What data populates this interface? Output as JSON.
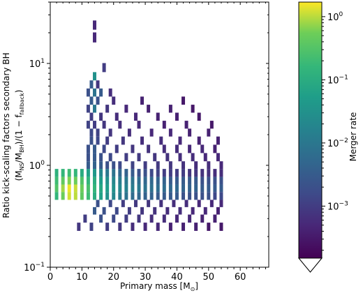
{
  "chart_data": {
    "type": "heatmap",
    "xlabel": "Primary mass [M",
    "xlabel_sub": "⊙",
    "xlabel_close": "]",
    "ylabel_line1": "Ratio kick-scaling factors secondary BH",
    "ylabel_line2": {
      "p1": "(M",
      "s1": "NS",
      "p2": "/M",
      "s2": "BH",
      "p3": ")/(1 − f",
      "s3": "fallback",
      "p4": ")"
    },
    "xlim": [
      0,
      69
    ],
    "ylim": [
      0.1,
      40
    ],
    "yscale": "log",
    "x_ticks": [
      0,
      10,
      20,
      30,
      40,
      50,
      60
    ],
    "x_tick_labels": [
      "0",
      "10",
      "20",
      "30",
      "40",
      "50",
      "60"
    ],
    "y_ticks": [
      0.1,
      1,
      10
    ],
    "y_tick_labels": [
      {
        "base": "10",
        "exp": "−1"
      },
      {
        "base": "10",
        "exp": "0"
      },
      {
        "base": "10",
        "exp": "1"
      }
    ],
    "colorbar": {
      "label": "Merger rate",
      "scale": "log",
      "range": [
        0.00015,
        1.7
      ],
      "extend": "min",
      "ticks": [
        0.001,
        0.01,
        0.1,
        1
      ],
      "tick_labels": [
        {
          "base": "10",
          "exp": "−3"
        },
        {
          "base": "10",
          "exp": "−2"
        },
        {
          "base": "10",
          "exp": "−1"
        },
        {
          "base": "10",
          "exp": "0"
        }
      ],
      "colormap": "viridis"
    },
    "bin_width_x": 1.1,
    "cells": [
      {
        "x": 2,
        "y": 0.5,
        "v": 0.15
      },
      {
        "x": 2,
        "y": 0.6,
        "v": 0.3
      },
      {
        "x": 2,
        "y": 0.7,
        "v": 0.2
      },
      {
        "x": 2,
        "y": 0.85,
        "v": 0.12
      },
      {
        "x": 4,
        "y": 0.5,
        "v": 0.5
      },
      {
        "x": 4,
        "y": 0.6,
        "v": 0.8
      },
      {
        "x": 4,
        "y": 0.7,
        "v": 0.4
      },
      {
        "x": 4,
        "y": 0.85,
        "v": 0.15
      },
      {
        "x": 6,
        "y": 0.5,
        "v": 1.2
      },
      {
        "x": 6,
        "y": 0.6,
        "v": 1.5
      },
      {
        "x": 6,
        "y": 0.7,
        "v": 0.6
      },
      {
        "x": 6,
        "y": 0.85,
        "v": 0.2
      },
      {
        "x": 8,
        "y": 0.5,
        "v": 1.0
      },
      {
        "x": 8,
        "y": 0.6,
        "v": 1.1
      },
      {
        "x": 8,
        "y": 0.7,
        "v": 0.5
      },
      {
        "x": 8,
        "y": 0.85,
        "v": 0.15
      },
      {
        "x": 10,
        "y": 0.5,
        "v": 0.4
      },
      {
        "x": 10,
        "y": 0.6,
        "v": 0.5
      },
      {
        "x": 10,
        "y": 0.7,
        "v": 0.3
      },
      {
        "x": 10,
        "y": 0.85,
        "v": 0.1
      },
      {
        "x": 12,
        "y": 0.5,
        "v": 0.2
      },
      {
        "x": 12,
        "y": 0.6,
        "v": 0.25
      },
      {
        "x": 12,
        "y": 0.7,
        "v": 0.15
      },
      {
        "x": 12,
        "y": 0.85,
        "v": 0.06
      },
      {
        "x": 14,
        "y": 0.5,
        "v": 0.1
      },
      {
        "x": 14,
        "y": 0.6,
        "v": 0.15
      },
      {
        "x": 14,
        "y": 0.7,
        "v": 0.1
      },
      {
        "x": 14,
        "y": 0.85,
        "v": 0.04
      },
      {
        "x": 16,
        "y": 0.5,
        "v": 0.06
      },
      {
        "x": 16,
        "y": 0.6,
        "v": 0.08
      },
      {
        "x": 16,
        "y": 0.7,
        "v": 0.05
      },
      {
        "x": 16,
        "y": 0.85,
        "v": 0.02
      },
      {
        "x": 18,
        "y": 0.5,
        "v": 0.03
      },
      {
        "x": 18,
        "y": 0.6,
        "v": 0.05
      },
      {
        "x": 18,
        "y": 0.7,
        "v": 0.03
      },
      {
        "x": 18,
        "y": 0.85,
        "v": 0.01
      },
      {
        "x": 20,
        "y": 0.5,
        "v": 0.02
      },
      {
        "x": 20,
        "y": 0.6,
        "v": 0.03
      },
      {
        "x": 20,
        "y": 0.7,
        "v": 0.02
      },
      {
        "x": 20,
        "y": 0.85,
        "v": 0.008
      },
      {
        "x": 22,
        "y": 0.5,
        "v": 0.012
      },
      {
        "x": 22,
        "y": 0.6,
        "v": 0.02
      },
      {
        "x": 22,
        "y": 0.7,
        "v": 0.012
      },
      {
        "x": 22,
        "y": 0.85,
        "v": 0.005
      },
      {
        "x": 24,
        "y": 0.5,
        "v": 0.008
      },
      {
        "x": 24,
        "y": 0.6,
        "v": 0.015
      },
      {
        "x": 24,
        "y": 0.7,
        "v": 0.01
      },
      {
        "x": 24,
        "y": 0.85,
        "v": 0.004
      },
      {
        "x": 26,
        "y": 0.5,
        "v": 0.006
      },
      {
        "x": 26,
        "y": 0.6,
        "v": 0.012
      },
      {
        "x": 26,
        "y": 0.7,
        "v": 0.008
      },
      {
        "x": 26,
        "y": 0.85,
        "v": 0.003
      },
      {
        "x": 28,
        "y": 0.5,
        "v": 0.005
      },
      {
        "x": 28,
        "y": 0.6,
        "v": 0.01
      },
      {
        "x": 28,
        "y": 0.7,
        "v": 0.006
      },
      {
        "x": 28,
        "y": 0.85,
        "v": 0.002
      },
      {
        "x": 30,
        "y": 0.5,
        "v": 0.004
      },
      {
        "x": 30,
        "y": 0.6,
        "v": 0.008
      },
      {
        "x": 30,
        "y": 0.7,
        "v": 0.005
      },
      {
        "x": 30,
        "y": 0.85,
        "v": 0.002
      },
      {
        "x": 32,
        "y": 0.5,
        "v": 0.004
      },
      {
        "x": 32,
        "y": 0.6,
        "v": 0.007
      },
      {
        "x": 32,
        "y": 0.7,
        "v": 0.005
      },
      {
        "x": 32,
        "y": 0.85,
        "v": 0.0015
      },
      {
        "x": 34,
        "y": 0.5,
        "v": 0.003
      },
      {
        "x": 34,
        "y": 0.6,
        "v": 0.006
      },
      {
        "x": 34,
        "y": 0.7,
        "v": 0.004
      },
      {
        "x": 34,
        "y": 0.85,
        "v": 0.0012
      },
      {
        "x": 36,
        "y": 0.5,
        "v": 0.003
      },
      {
        "x": 36,
        "y": 0.6,
        "v": 0.006
      },
      {
        "x": 36,
        "y": 0.7,
        "v": 0.004
      },
      {
        "x": 36,
        "y": 0.85,
        "v": 0.001
      },
      {
        "x": 38,
        "y": 0.5,
        "v": 0.003
      },
      {
        "x": 38,
        "y": 0.6,
        "v": 0.005
      },
      {
        "x": 38,
        "y": 0.7,
        "v": 0.003
      },
      {
        "x": 38,
        "y": 0.85,
        "v": 0.001
      },
      {
        "x": 40,
        "y": 0.5,
        "v": 0.003
      },
      {
        "x": 40,
        "y": 0.6,
        "v": 0.005
      },
      {
        "x": 40,
        "y": 0.7,
        "v": 0.003
      },
      {
        "x": 40,
        "y": 0.85,
        "v": 0.001
      },
      {
        "x": 42,
        "y": 0.5,
        "v": 0.002
      },
      {
        "x": 42,
        "y": 0.6,
        "v": 0.004
      },
      {
        "x": 42,
        "y": 0.7,
        "v": 0.003
      },
      {
        "x": 42,
        "y": 0.85,
        "v": 0.001
      },
      {
        "x": 44,
        "y": 0.5,
        "v": 0.002
      },
      {
        "x": 44,
        "y": 0.6,
        "v": 0.004
      },
      {
        "x": 44,
        "y": 0.7,
        "v": 0.003
      },
      {
        "x": 44,
        "y": 0.85,
        "v": 0.0008
      },
      {
        "x": 46,
        "y": 0.5,
        "v": 0.002
      },
      {
        "x": 46,
        "y": 0.6,
        "v": 0.004
      },
      {
        "x": 46,
        "y": 0.7,
        "v": 0.003
      },
      {
        "x": 46,
        "y": 0.85,
        "v": 0.0008
      },
      {
        "x": 48,
        "y": 0.5,
        "v": 0.002
      },
      {
        "x": 48,
        "y": 0.6,
        "v": 0.003
      },
      {
        "x": 48,
        "y": 0.7,
        "v": 0.002
      },
      {
        "x": 48,
        "y": 0.85,
        "v": 0.0007
      },
      {
        "x": 50,
        "y": 0.5,
        "v": 0.002
      },
      {
        "x": 50,
        "y": 0.6,
        "v": 0.003
      },
      {
        "x": 50,
        "y": 0.7,
        "v": 0.002
      },
      {
        "x": 50,
        "y": 0.85,
        "v": 0.0007
      },
      {
        "x": 52,
        "y": 0.5,
        "v": 0.0015
      },
      {
        "x": 52,
        "y": 0.6,
        "v": 0.003
      },
      {
        "x": 52,
        "y": 0.7,
        "v": 0.002
      },
      {
        "x": 52,
        "y": 0.85,
        "v": 0.0006
      },
      {
        "x": 54,
        "y": 0.5,
        "v": 0.0015
      },
      {
        "x": 54,
        "y": 0.6,
        "v": 0.003
      },
      {
        "x": 54,
        "y": 0.7,
        "v": 0.002
      },
      {
        "x": 54,
        "y": 0.85,
        "v": 0.0006
      },
      {
        "x": 12,
        "y": 1.0,
        "v": 0.003
      },
      {
        "x": 14,
        "y": 1.0,
        "v": 0.004
      },
      {
        "x": 16,
        "y": 1.0,
        "v": 0.003
      },
      {
        "x": 18,
        "y": 1.0,
        "v": 0.002
      },
      {
        "x": 20,
        "y": 1.0,
        "v": 0.002
      },
      {
        "x": 22,
        "y": 1.0,
        "v": 0.0015
      },
      {
        "x": 26,
        "y": 1.0,
        "v": 0.0012
      },
      {
        "x": 30,
        "y": 1.0,
        "v": 0.001
      },
      {
        "x": 34,
        "y": 1.0,
        "v": 0.0009
      },
      {
        "x": 38,
        "y": 1.0,
        "v": 0.0008
      },
      {
        "x": 42,
        "y": 1.0,
        "v": 0.0007
      },
      {
        "x": 46,
        "y": 1.0,
        "v": 0.0006
      },
      {
        "x": 50,
        "y": 1.0,
        "v": 0.0006
      },
      {
        "x": 54,
        "y": 1.0,
        "v": 0.0005
      },
      {
        "x": 12,
        "y": 1.2,
        "v": 0.002
      },
      {
        "x": 14,
        "y": 1.2,
        "v": 0.003
      },
      {
        "x": 16,
        "y": 1.2,
        "v": 0.002
      },
      {
        "x": 19,
        "y": 1.2,
        "v": 0.0015
      },
      {
        "x": 24,
        "y": 1.2,
        "v": 0.001
      },
      {
        "x": 28,
        "y": 1.2,
        "v": 0.0009
      },
      {
        "x": 33,
        "y": 1.2,
        "v": 0.0008
      },
      {
        "x": 37,
        "y": 1.2,
        "v": 0.0007
      },
      {
        "x": 41,
        "y": 1.2,
        "v": 0.0006
      },
      {
        "x": 45,
        "y": 1.2,
        "v": 0.0006
      },
      {
        "x": 49,
        "y": 1.2,
        "v": 0.0005
      },
      {
        "x": 53,
        "y": 1.2,
        "v": 0.0005
      },
      {
        "x": 12,
        "y": 1.45,
        "v": 0.002
      },
      {
        "x": 14,
        "y": 1.45,
        "v": 0.003
      },
      {
        "x": 17,
        "y": 1.45,
        "v": 0.0015
      },
      {
        "x": 21,
        "y": 1.45,
        "v": 0.001
      },
      {
        "x": 26,
        "y": 1.45,
        "v": 0.0008
      },
      {
        "x": 31,
        "y": 1.45,
        "v": 0.0007
      },
      {
        "x": 36,
        "y": 1.45,
        "v": 0.0006
      },
      {
        "x": 40,
        "y": 1.45,
        "v": 0.0006
      },
      {
        "x": 44,
        "y": 1.45,
        "v": 0.0005
      },
      {
        "x": 48,
        "y": 1.45,
        "v": 0.0005
      },
      {
        "x": 52,
        "y": 1.45,
        "v": 0.0004
      },
      {
        "x": 13,
        "y": 1.75,
        "v": 0.002
      },
      {
        "x": 15,
        "y": 1.75,
        "v": 0.0015
      },
      {
        "x": 18,
        "y": 1.75,
        "v": 0.001
      },
      {
        "x": 23,
        "y": 1.75,
        "v": 0.0008
      },
      {
        "x": 29,
        "y": 1.75,
        "v": 0.0006
      },
      {
        "x": 35,
        "y": 1.75,
        "v": 0.0006
      },
      {
        "x": 41,
        "y": 1.75,
        "v": 0.0005
      },
      {
        "x": 47,
        "y": 1.75,
        "v": 0.0004
      },
      {
        "x": 53,
        "y": 1.75,
        "v": 0.0004
      },
      {
        "x": 13,
        "y": 2.1,
        "v": 0.0015
      },
      {
        "x": 15,
        "y": 2.1,
        "v": 0.0012
      },
      {
        "x": 19,
        "y": 2.1,
        "v": 0.0008
      },
      {
        "x": 25,
        "y": 2.1,
        "v": 0.0006
      },
      {
        "x": 32,
        "y": 2.1,
        "v": 0.0005
      },
      {
        "x": 38,
        "y": 2.1,
        "v": 0.0005
      },
      {
        "x": 44,
        "y": 2.1,
        "v": 0.0004
      },
      {
        "x": 50,
        "y": 2.1,
        "v": 0.0004
      },
      {
        "x": 12,
        "y": 2.5,
        "v": 0.0012
      },
      {
        "x": 14,
        "y": 2.5,
        "v": 0.001
      },
      {
        "x": 17,
        "y": 2.5,
        "v": 0.0008
      },
      {
        "x": 22,
        "y": 2.5,
        "v": 0.0006
      },
      {
        "x": 28,
        "y": 2.5,
        "v": 0.0005
      },
      {
        "x": 36,
        "y": 2.5,
        "v": 0.0004
      },
      {
        "x": 43,
        "y": 2.5,
        "v": 0.0004
      },
      {
        "x": 51,
        "y": 2.5,
        "v": 0.0003
      },
      {
        "x": 13,
        "y": 3.0,
        "v": 0.001
      },
      {
        "x": 16,
        "y": 3.0,
        "v": 0.0008
      },
      {
        "x": 21,
        "y": 3.0,
        "v": 0.0006
      },
      {
        "x": 27,
        "y": 3.0,
        "v": 0.0005
      },
      {
        "x": 34,
        "y": 3.0,
        "v": 0.0004
      },
      {
        "x": 40,
        "y": 3.0,
        "v": 0.0004
      },
      {
        "x": 47,
        "y": 3.0,
        "v": 0.0003
      },
      {
        "x": 12,
        "y": 3.6,
        "v": 0.0012
      },
      {
        "x": 14,
        "y": 3.6,
        "v": 0.01
      },
      {
        "x": 18,
        "y": 3.6,
        "v": 0.0008
      },
      {
        "x": 24,
        "y": 3.6,
        "v": 0.0005
      },
      {
        "x": 31,
        "y": 3.6,
        "v": 0.0004
      },
      {
        "x": 38,
        "y": 3.6,
        "v": 0.0004
      },
      {
        "x": 45,
        "y": 3.6,
        "v": 0.0003
      },
      {
        "x": 13,
        "y": 4.3,
        "v": 0.003
      },
      {
        "x": 15,
        "y": 4.3,
        "v": 0.002
      },
      {
        "x": 20,
        "y": 4.3,
        "v": 0.0006
      },
      {
        "x": 29,
        "y": 4.3,
        "v": 0.0004
      },
      {
        "x": 42,
        "y": 4.3,
        "v": 0.0003
      },
      {
        "x": 12,
        "y": 5.2,
        "v": 0.002
      },
      {
        "x": 14,
        "y": 5.2,
        "v": 0.008
      },
      {
        "x": 16,
        "y": 5.2,
        "v": 0.003
      },
      {
        "x": 19,
        "y": 5.2,
        "v": 0.0006
      },
      {
        "x": 13,
        "y": 6.2,
        "v": 0.003
      },
      {
        "x": 15,
        "y": 6.2,
        "v": 0.0008
      },
      {
        "x": 14,
        "y": 7.5,
        "v": 0.03
      },
      {
        "x": 17,
        "y": 9.0,
        "v": 0.001
      },
      {
        "x": 14,
        "y": 18.0,
        "v": 0.0005
      },
      {
        "x": 14,
        "y": 24.0,
        "v": 0.0005
      },
      {
        "x": 15,
        "y": 0.42,
        "v": 0.002
      },
      {
        "x": 19,
        "y": 0.42,
        "v": 0.0015
      },
      {
        "x": 23,
        "y": 0.42,
        "v": 0.001
      },
      {
        "x": 27,
        "y": 0.42,
        "v": 0.0009
      },
      {
        "x": 31,
        "y": 0.42,
        "v": 0.0008
      },
      {
        "x": 35,
        "y": 0.42,
        "v": 0.0007
      },
      {
        "x": 39,
        "y": 0.42,
        "v": 0.0006
      },
      {
        "x": 43,
        "y": 0.42,
        "v": 0.0006
      },
      {
        "x": 47,
        "y": 0.42,
        "v": 0.0005
      },
      {
        "x": 51,
        "y": 0.42,
        "v": 0.0005
      },
      {
        "x": 54,
        "y": 0.42,
        "v": 0.0005
      },
      {
        "x": 14,
        "y": 0.36,
        "v": 0.003
      },
      {
        "x": 17,
        "y": 0.36,
        "v": 0.002
      },
      {
        "x": 21,
        "y": 0.36,
        "v": 0.0015
      },
      {
        "x": 25,
        "y": 0.36,
        "v": 0.001
      },
      {
        "x": 29,
        "y": 0.36,
        "v": 0.0008
      },
      {
        "x": 33,
        "y": 0.36,
        "v": 0.0007
      },
      {
        "x": 37,
        "y": 0.36,
        "v": 0.0006
      },
      {
        "x": 41,
        "y": 0.36,
        "v": 0.0006
      },
      {
        "x": 45,
        "y": 0.36,
        "v": 0.0005
      },
      {
        "x": 49,
        "y": 0.36,
        "v": 0.0005
      },
      {
        "x": 53,
        "y": 0.36,
        "v": 0.0004
      },
      {
        "x": 11,
        "y": 0.3,
        "v": 0.001
      },
      {
        "x": 16,
        "y": 0.3,
        "v": 0.002
      },
      {
        "x": 20,
        "y": 0.3,
        "v": 0.0015
      },
      {
        "x": 24,
        "y": 0.3,
        "v": 0.001
      },
      {
        "x": 28,
        "y": 0.3,
        "v": 0.0008
      },
      {
        "x": 32,
        "y": 0.3,
        "v": 0.0006
      },
      {
        "x": 36,
        "y": 0.3,
        "v": 0.0006
      },
      {
        "x": 40,
        "y": 0.3,
        "v": 0.0005
      },
      {
        "x": 44,
        "y": 0.3,
        "v": 0.0005
      },
      {
        "x": 48,
        "y": 0.3,
        "v": 0.0004
      },
      {
        "x": 52,
        "y": 0.3,
        "v": 0.0004
      },
      {
        "x": 9,
        "y": 0.25,
        "v": 0.0008
      },
      {
        "x": 13,
        "y": 0.25,
        "v": 0.0012
      },
      {
        "x": 18,
        "y": 0.25,
        "v": 0.001
      },
      {
        "x": 22,
        "y": 0.25,
        "v": 0.0008
      },
      {
        "x": 26,
        "y": 0.25,
        "v": 0.0006
      },
      {
        "x": 30,
        "y": 0.25,
        "v": 0.0005
      },
      {
        "x": 34,
        "y": 0.25,
        "v": 0.0005
      },
      {
        "x": 38,
        "y": 0.25,
        "v": 0.0004
      },
      {
        "x": 42,
        "y": 0.25,
        "v": 0.0004
      },
      {
        "x": 46,
        "y": 0.25,
        "v": 0.0004
      },
      {
        "x": 50,
        "y": 0.25,
        "v": 0.0003
      },
      {
        "x": 54,
        "y": 0.25,
        "v": 0.0003
      }
    ]
  }
}
